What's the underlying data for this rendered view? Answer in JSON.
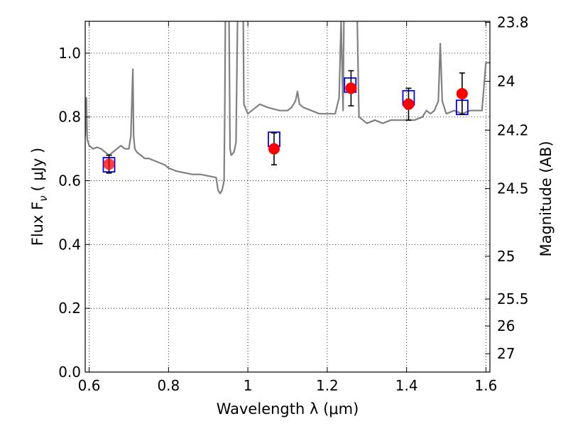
{
  "chart_data": {
    "type": "scatter",
    "xlabel": "Wavelength  λ (μm)",
    "ylabel_left": "Flux  F",
    "ylabel_left_sub": "ν",
    "ylabel_left_unit": "( μJy )",
    "ylabel_right": "Magnitude (AB)",
    "xlim": [
      0.59,
      1.61
    ],
    "ylim": [
      0.0,
      1.1
    ],
    "x_ticks": [
      "0.6",
      "0.8",
      "1",
      "1.2",
      "1.4",
      "1.6"
    ],
    "x_tick_values": [
      0.6,
      0.8,
      1.0,
      1.2,
      1.4,
      1.6
    ],
    "y_ticks": [
      "0.0",
      "0.2",
      "0.4",
      "0.6",
      "0.8",
      "1.0"
    ],
    "y_tick_values": [
      0.0,
      0.2,
      0.4,
      0.6,
      0.8,
      1.0
    ],
    "right_ticks": [
      "23.8",
      "24",
      "24.2",
      "24.5",
      "25",
      "25.5",
      "26",
      "27"
    ],
    "right_tick_values": [
      23.8,
      24.0,
      24.2,
      24.5,
      25.0,
      25.5,
      26.0,
      27.0
    ],
    "grid": true,
    "colors": {
      "spectrum": "#808080",
      "observed": "#ff0000",
      "model": "#0000ff",
      "errorbar": "#000000"
    },
    "series": [
      {
        "kind": "line",
        "x": [
          0.59,
          0.593,
          0.595,
          0.6,
          0.61,
          0.62,
          0.63,
          0.64,
          0.65,
          0.66,
          0.67,
          0.68,
          0.69,
          0.7,
          0.705,
          0.71,
          0.712,
          0.715,
          0.72,
          0.73,
          0.74,
          0.75,
          0.77,
          0.79,
          0.8,
          0.82,
          0.84,
          0.86,
          0.88,
          0.9,
          0.92,
          0.925,
          0.93,
          0.935,
          0.94,
          0.942,
          0.945,
          0.95,
          0.955,
          0.958,
          0.965,
          0.97,
          0.978,
          0.982,
          0.986,
          0.99,
          1.0,
          1.01,
          1.02,
          1.03,
          1.05,
          1.08,
          1.1,
          1.11,
          1.12,
          1.125,
          1.13,
          1.14,
          1.16,
          1.18,
          1.2,
          1.22,
          1.23,
          1.235,
          1.24,
          1.245,
          1.25,
          1.255,
          1.26,
          1.265,
          1.27,
          1.28,
          1.29,
          1.3,
          1.32,
          1.34,
          1.36,
          1.38,
          1.4,
          1.42,
          1.44,
          1.45,
          1.46,
          1.47,
          1.48,
          1.485,
          1.49,
          1.495,
          1.5,
          1.52,
          1.54,
          1.56,
          1.58,
          1.59,
          1.6,
          1.61
        ],
        "y": [
          0.74,
          0.86,
          0.73,
          0.71,
          0.7,
          0.705,
          0.7,
          0.69,
          0.68,
          0.69,
          0.7,
          0.71,
          0.7,
          0.7,
          0.74,
          0.95,
          0.74,
          0.7,
          0.69,
          0.68,
          0.67,
          0.67,
          0.66,
          0.65,
          0.64,
          0.63,
          0.625,
          0.62,
          0.62,
          0.615,
          0.61,
          0.57,
          0.56,
          0.57,
          0.6,
          0.85,
          1.5,
          1.5,
          0.7,
          0.68,
          0.69,
          0.72,
          1.5,
          1.5,
          1.5,
          0.84,
          0.81,
          0.82,
          0.83,
          0.84,
          0.83,
          0.82,
          0.82,
          0.83,
          0.85,
          0.88,
          0.84,
          0.83,
          0.82,
          0.81,
          0.81,
          0.81,
          0.86,
          1.1,
          0.82,
          1.5,
          1.5,
          1.5,
          1.5,
          1.5,
          1.5,
          0.8,
          0.79,
          0.78,
          0.79,
          0.78,
          0.79,
          0.79,
          0.79,
          0.79,
          0.8,
          0.82,
          0.81,
          0.82,
          0.85,
          1.03,
          0.85,
          0.83,
          0.81,
          0.82,
          0.81,
          0.82,
          0.82,
          0.82,
          0.97,
          0.97
        ]
      },
      {
        "kind": "model_boxes",
        "x": [
          0.65,
          1.066,
          1.258,
          1.405,
          1.54
        ],
        "y": [
          0.65,
          0.73,
          0.9,
          0.86,
          0.83
        ]
      },
      {
        "kind": "observed_points",
        "x": [
          0.65,
          1.066,
          1.26,
          1.405,
          1.54
        ],
        "y": [
          0.652,
          0.7,
          0.89,
          0.84,
          0.873
        ],
        "yerr": [
          0.028,
          0.05,
          0.055,
          0.05,
          0.065
        ]
      }
    ]
  }
}
